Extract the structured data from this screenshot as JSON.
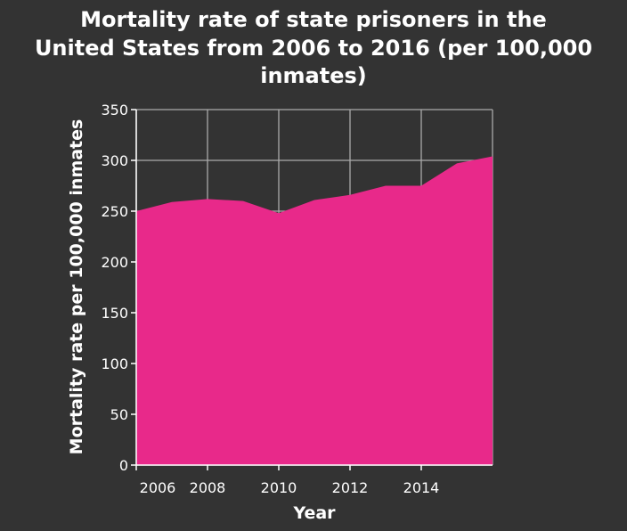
{
  "chart_data": {
    "type": "area",
    "title_lines": [
      "Mortality rate of state prisoners in the",
      "United States from 2006 to 2016 (per 100,000",
      "inmates)"
    ],
    "xlabel": "Year",
    "ylabel": "Mortality rate per 100,000 inmates",
    "x": [
      2006,
      2007,
      2008,
      2009,
      2010,
      2011,
      2012,
      2013,
      2014,
      2015,
      2016
    ],
    "series": [
      {
        "values": [
          250,
          259,
          262,
          260,
          248,
          261,
          266,
          275,
          275,
          297,
          304
        ]
      }
    ],
    "x_ticks": [
      2006,
      2008,
      2010,
      2012,
      2014
    ],
    "x_tick_labels": [
      "2006",
      "2008",
      "2010",
      "2012",
      "2014"
    ],
    "y_ticks": [
      0,
      50,
      100,
      150,
      200,
      250,
      300,
      350
    ],
    "y_tick_labels": [
      "0",
      "50",
      "100",
      "150",
      "200",
      "250",
      "300",
      "350"
    ],
    "xlim": [
      2006,
      2016
    ],
    "ylim": [
      0,
      350
    ],
    "grid": true,
    "colors": {
      "fill": "#e8298a",
      "background": "#333333",
      "grid": "#aaaaaa",
      "text": "#ffffff"
    }
  }
}
